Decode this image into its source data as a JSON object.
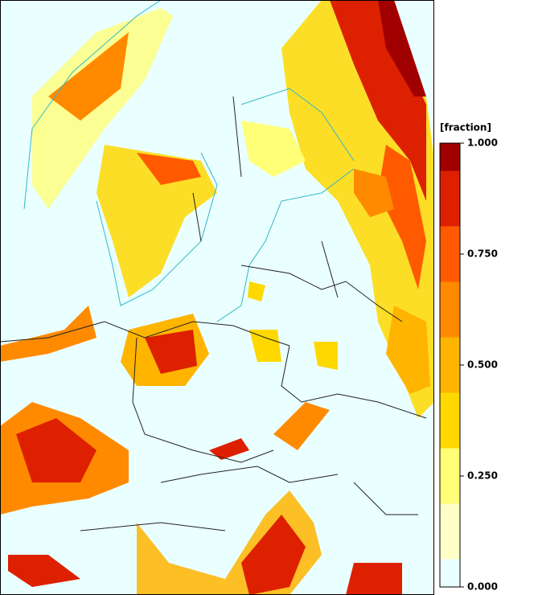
{
  "colorbar": {
    "label": "[fraction]",
    "lim": [
      0,
      1
    ],
    "ticks": [
      {
        "value": 0,
        "label": "0.000"
      },
      {
        "value": 0.25,
        "label": "0.250"
      },
      {
        "value": 0.5,
        "label": "0.500"
      },
      {
        "value": 0.75,
        "label": "0.750"
      },
      {
        "value": 1,
        "label": "1.000"
      }
    ],
    "bands": [
      {
        "from": 0,
        "to": 0.0625,
        "color": "#eaffff"
      },
      {
        "from": 0.0625,
        "to": 0.1875,
        "color": "#ffffc8"
      },
      {
        "from": 0.1875,
        "to": 0.3125,
        "color": "#ffff78"
      },
      {
        "from": 0.3125,
        "to": 0.4375,
        "color": "#ffd800"
      },
      {
        "from": 0.4375,
        "to": 0.5625,
        "color": "#ffb400"
      },
      {
        "from": 0.5625,
        "to": 0.6875,
        "color": "#ff8a00"
      },
      {
        "from": 0.6875,
        "to": 0.8125,
        "color": "#ff5a00"
      },
      {
        "from": 0.8125,
        "to": 0.9375,
        "color": "#dd2000"
      },
      {
        "from": 0.9375,
        "to": 1,
        "color": "#a00000"
      }
    ]
  }
}
